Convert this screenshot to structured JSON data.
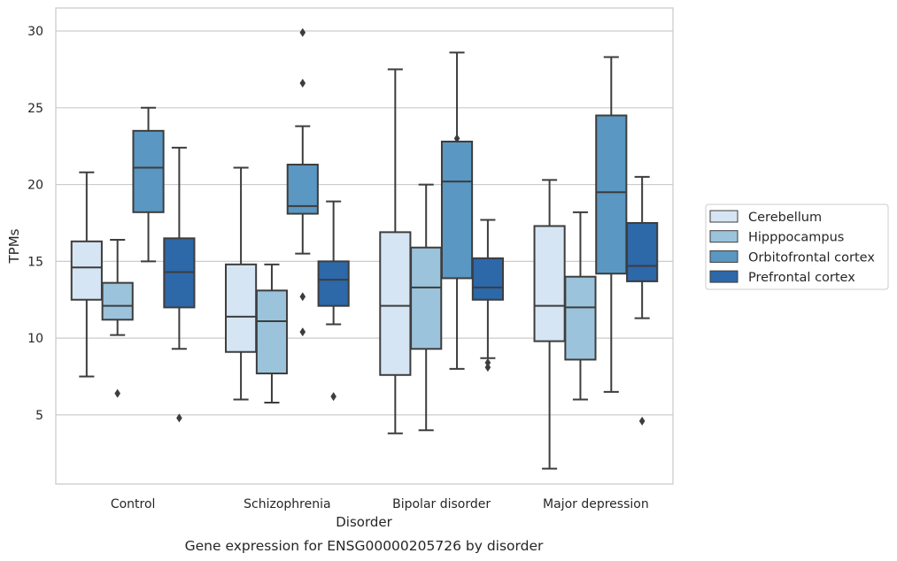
{
  "chart_data": {
    "type": "box",
    "title": "Gene expression for ENSG00000205726 by disorder",
    "xlabel": "Disorder",
    "ylabel": "TPMs",
    "ylim": [
      0.5,
      31.5
    ],
    "yticks": [
      5,
      10,
      15,
      20,
      25,
      30
    ],
    "grid": true,
    "legend_position": "right",
    "categories": [
      "Control",
      "Schizophrenia",
      "Bipolar disorder",
      "Major depression"
    ],
    "series": [
      {
        "name": "Cerebellum",
        "color": "#d6e5f3",
        "boxes": [
          {
            "whislo": 7.5,
            "q1": 12.5,
            "med": 14.6,
            "q3": 16.3,
            "whishi": 20.8,
            "fliers": []
          },
          {
            "whislo": 6.0,
            "q1": 9.1,
            "med": 11.4,
            "q3": 14.8,
            "whishi": 21.1,
            "fliers": []
          },
          {
            "whislo": 3.8,
            "q1": 7.6,
            "med": 12.1,
            "q3": 16.9,
            "whishi": 27.5,
            "fliers": []
          },
          {
            "whislo": 1.5,
            "q1": 9.8,
            "med": 12.1,
            "q3": 17.3,
            "whishi": 20.3,
            "fliers": []
          }
        ]
      },
      {
        "name": "Hipppocampus",
        "color": "#9bc4dc",
        "boxes": [
          {
            "whislo": 10.2,
            "q1": 11.2,
            "med": 12.1,
            "q3": 13.6,
            "whishi": 16.4,
            "fliers": [
              6.4
            ]
          },
          {
            "whislo": 5.8,
            "q1": 7.7,
            "med": 11.1,
            "q3": 13.1,
            "whishi": 14.8,
            "fliers": []
          },
          {
            "whislo": 4.0,
            "q1": 9.3,
            "med": 13.3,
            "q3": 15.9,
            "whishi": 20.0,
            "fliers": []
          },
          {
            "whislo": 6.0,
            "q1": 8.6,
            "med": 12.0,
            "q3": 14.0,
            "whishi": 18.2,
            "fliers": []
          }
        ]
      },
      {
        "name": "Orbitofrontal cortex",
        "color": "#5a97c2",
        "boxes": [
          {
            "whislo": 15.0,
            "q1": 18.2,
            "med": 21.1,
            "q3": 23.5,
            "whishi": 25.0,
            "fliers": []
          },
          {
            "whislo": 15.5,
            "q1": 18.1,
            "med": 18.6,
            "q3": 21.3,
            "whishi": 23.8,
            "fliers": [
              26.6,
              29.9,
              12.7,
              10.4
            ]
          },
          {
            "whislo": 8.0,
            "q1": 13.9,
            "med": 20.2,
            "q3": 22.8,
            "whishi": 28.6,
            "fliers": [
              23.0
            ]
          },
          {
            "whislo": 6.5,
            "q1": 14.2,
            "med": 19.5,
            "q3": 24.5,
            "whishi": 28.3,
            "fliers": []
          }
        ]
      },
      {
        "name": "Prefrontal cortex",
        "color": "#2d68a9",
        "boxes": [
          {
            "whislo": 9.3,
            "q1": 12.0,
            "med": 14.3,
            "q3": 16.5,
            "whishi": 22.4,
            "fliers": [
              4.8
            ]
          },
          {
            "whislo": 10.9,
            "q1": 12.1,
            "med": 13.8,
            "q3": 15.0,
            "whishi": 18.9,
            "fliers": [
              6.2
            ]
          },
          {
            "whislo": 8.7,
            "q1": 12.5,
            "med": 13.3,
            "q3": 15.2,
            "whishi": 17.7,
            "fliers": [
              8.1,
              8.4
            ]
          },
          {
            "whislo": 11.3,
            "q1": 13.7,
            "med": 14.7,
            "q3": 17.5,
            "whishi": 20.5,
            "fliers": [
              4.6
            ]
          }
        ]
      }
    ]
  }
}
